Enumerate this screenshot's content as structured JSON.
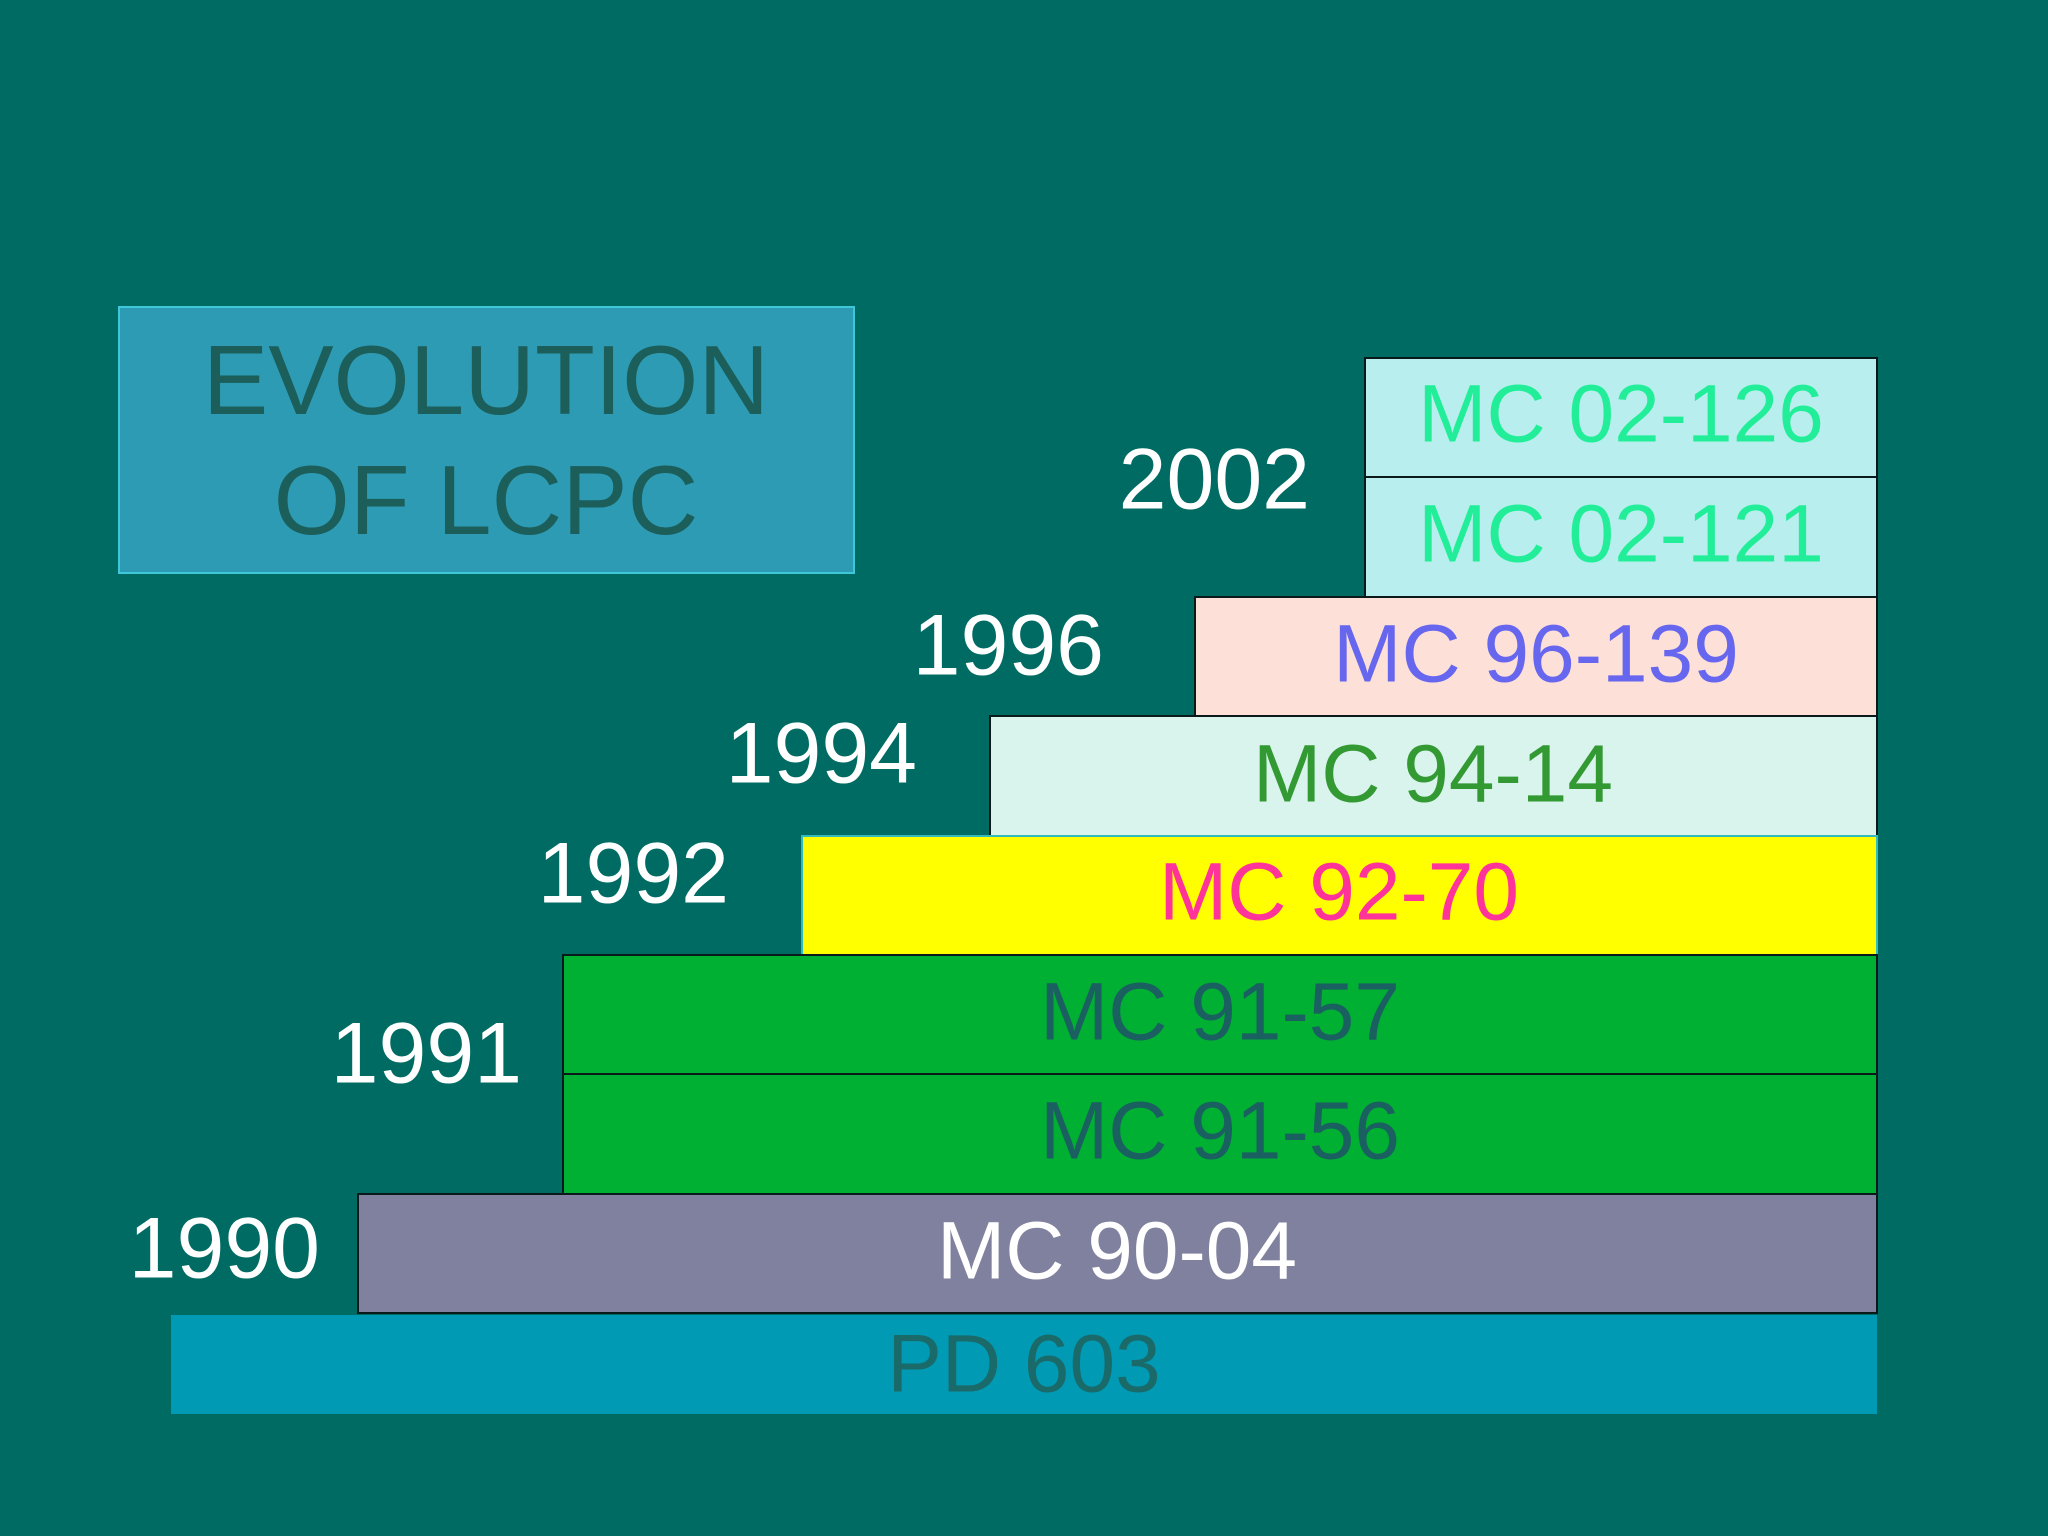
{
  "title": {
    "lines": [
      "EVOLUTION",
      "OF LCPC"
    ]
  },
  "years": [
    "2002",
    "1996",
    "1994",
    "1992",
    "1991",
    "1990"
  ],
  "blocks": [
    "MC 02-126",
    "MC 02-121",
    "MC 96-139",
    "MC 94-14",
    "MC 92-70",
    "MC 91-57",
    "MC 91-56",
    "MC 90-04",
    "PD 603"
  ]
}
